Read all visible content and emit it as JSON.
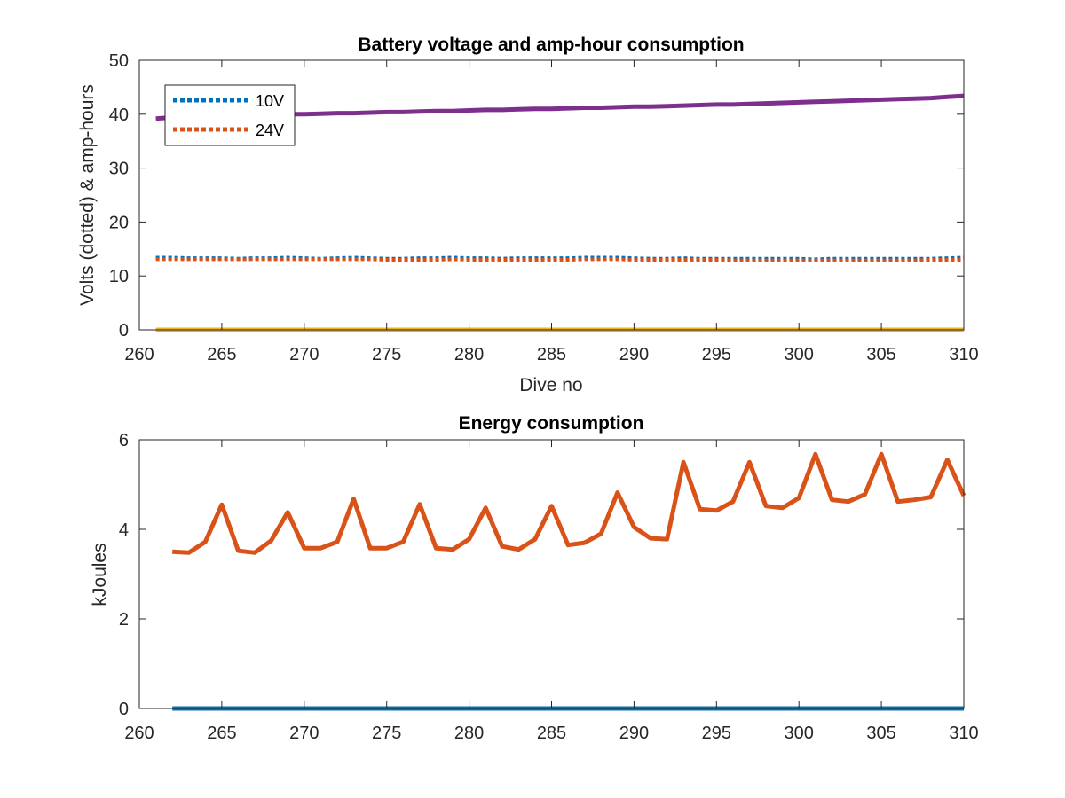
{
  "colors": {
    "blue": "#0072bd",
    "orange": "#d95319",
    "yellow": "#edb120",
    "purple": "#7e2f8e",
    "axis": "#262626"
  },
  "chart_data": [
    {
      "type": "line",
      "title": "Battery voltage and amp-hour consumption",
      "xlabel": "Dive no",
      "ylabel": "Volts (dotted) & amp-hours",
      "xlim": [
        260,
        310
      ],
      "ylim": [
        0,
        50
      ],
      "x_ticks": [
        260,
        265,
        270,
        275,
        280,
        285,
        290,
        295,
        300,
        305,
        310
      ],
      "y_ticks": [
        0,
        10,
        20,
        30,
        40,
        50
      ],
      "grid": false,
      "legend": {
        "placement": "top-left",
        "entries": [
          "10V",
          "24V"
        ]
      },
      "x": [
        261,
        262,
        263,
        264,
        265,
        266,
        267,
        268,
        269,
        270,
        271,
        272,
        273,
        274,
        275,
        276,
        277,
        278,
        279,
        280,
        281,
        282,
        283,
        284,
        285,
        286,
        287,
        288,
        289,
        290,
        291,
        292,
        293,
        294,
        295,
        296,
        297,
        298,
        299,
        300,
        301,
        302,
        303,
        304,
        305,
        306,
        307,
        308,
        309,
        310
      ],
      "series": [
        {
          "name": "10V",
          "style": "dotted",
          "color": "#0072bd",
          "values": [
            13.4,
            13.4,
            13.3,
            13.3,
            13.3,
            13.2,
            13.3,
            13.3,
            13.4,
            13.3,
            13.2,
            13.3,
            13.4,
            13.3,
            13.2,
            13.2,
            13.3,
            13.3,
            13.4,
            13.3,
            13.3,
            13.2,
            13.3,
            13.3,
            13.3,
            13.3,
            13.4,
            13.4,
            13.4,
            13.3,
            13.2,
            13.2,
            13.3,
            13.2,
            13.2,
            13.2,
            13.2,
            13.2,
            13.2,
            13.2,
            13.1,
            13.2,
            13.2,
            13.2,
            13.2,
            13.2,
            13.2,
            13.2,
            13.3,
            13.4
          ]
        },
        {
          "name": "24V",
          "style": "dotted",
          "color": "#d95319",
          "values": [
            13.1,
            13.1,
            13.1,
            13.1,
            13.1,
            13.1,
            13.1,
            13.1,
            13.1,
            13.1,
            13.1,
            13.1,
            13.1,
            13.1,
            13.0,
            13.0,
            13.0,
            13.0,
            13.1,
            13.0,
            13.0,
            13.0,
            13.0,
            13.0,
            13.0,
            13.0,
            13.1,
            13.1,
            13.1,
            13.0,
            13.0,
            13.0,
            13.0,
            13.0,
            13.0,
            12.9,
            12.9,
            12.9,
            12.9,
            12.9,
            12.9,
            12.9,
            12.9,
            12.9,
            12.9,
            12.9,
            12.9,
            13.0,
            13.0,
            13.0
          ]
        },
        {
          "style": "solid",
          "color": "#edb120",
          "values": [
            0,
            0,
            0,
            0,
            0,
            0,
            0,
            0,
            0,
            0,
            0,
            0,
            0,
            0,
            0,
            0,
            0,
            0,
            0,
            0,
            0,
            0,
            0,
            0,
            0,
            0,
            0,
            0,
            0,
            0,
            0,
            0,
            0,
            0,
            0,
            0,
            0,
            0,
            0,
            0,
            0,
            0,
            0,
            0,
            0,
            0,
            0,
            0,
            0,
            0
          ]
        },
        {
          "style": "solid",
          "color": "#7e2f8e",
          "values": [
            39.2,
            39.4,
            39.5,
            39.6,
            39.7,
            39.8,
            39.8,
            39.9,
            40.0,
            40.0,
            40.1,
            40.2,
            40.2,
            40.3,
            40.4,
            40.4,
            40.5,
            40.6,
            40.6,
            40.7,
            40.8,
            40.8,
            40.9,
            41.0,
            41.0,
            41.1,
            41.2,
            41.2,
            41.3,
            41.4,
            41.4,
            41.5,
            41.6,
            41.7,
            41.8,
            41.8,
            41.9,
            42.0,
            42.1,
            42.2,
            42.3,
            42.4,
            42.5,
            42.6,
            42.7,
            42.8,
            42.9,
            43.0,
            43.2,
            43.4
          ]
        }
      ]
    },
    {
      "type": "line",
      "title": "Energy consumption",
      "xlabel": "",
      "ylabel": "kJoules",
      "xlim": [
        260,
        310
      ],
      "ylim": [
        0,
        6
      ],
      "x_ticks": [
        260,
        265,
        270,
        275,
        280,
        285,
        290,
        295,
        300,
        305,
        310
      ],
      "y_ticks": [
        0,
        2,
        4,
        6
      ],
      "grid": false,
      "x": [
        262,
        263,
        264,
        265,
        266,
        267,
        268,
        269,
        270,
        271,
        272,
        273,
        274,
        275,
        276,
        277,
        278,
        279,
        280,
        281,
        282,
        283,
        284,
        285,
        286,
        287,
        288,
        289,
        290,
        291,
        292,
        293,
        294,
        295,
        296,
        297,
        298,
        299,
        300,
        301,
        302,
        303,
        304,
        305,
        306,
        307,
        308,
        309,
        310
      ],
      "series": [
        {
          "style": "solid",
          "color": "#d95319",
          "values": [
            3.5,
            3.48,
            3.72,
            4.55,
            3.52,
            3.48,
            3.75,
            4.38,
            3.58,
            3.58,
            3.72,
            4.68,
            3.58,
            3.58,
            3.72,
            4.56,
            3.58,
            3.55,
            3.78,
            4.48,
            3.62,
            3.55,
            3.78,
            4.52,
            3.65,
            3.7,
            3.9,
            4.82,
            4.05,
            3.8,
            3.78,
            5.5,
            4.45,
            4.42,
            4.62,
            5.5,
            4.52,
            4.48,
            4.7,
            5.68,
            4.66,
            4.62,
            4.78,
            5.68,
            4.62,
            4.66,
            4.72,
            5.55,
            4.75
          ]
        },
        {
          "style": "solid",
          "color": "#0072bd",
          "values": [
            0,
            0,
            0,
            0,
            0,
            0,
            0,
            0,
            0,
            0,
            0,
            0,
            0,
            0,
            0,
            0,
            0,
            0,
            0,
            0,
            0,
            0,
            0,
            0,
            0,
            0,
            0,
            0,
            0,
            0,
            0,
            0,
            0,
            0,
            0,
            0,
            0,
            0,
            0,
            0,
            0,
            0,
            0,
            0,
            0,
            0,
            0,
            0,
            0
          ]
        }
      ]
    }
  ]
}
